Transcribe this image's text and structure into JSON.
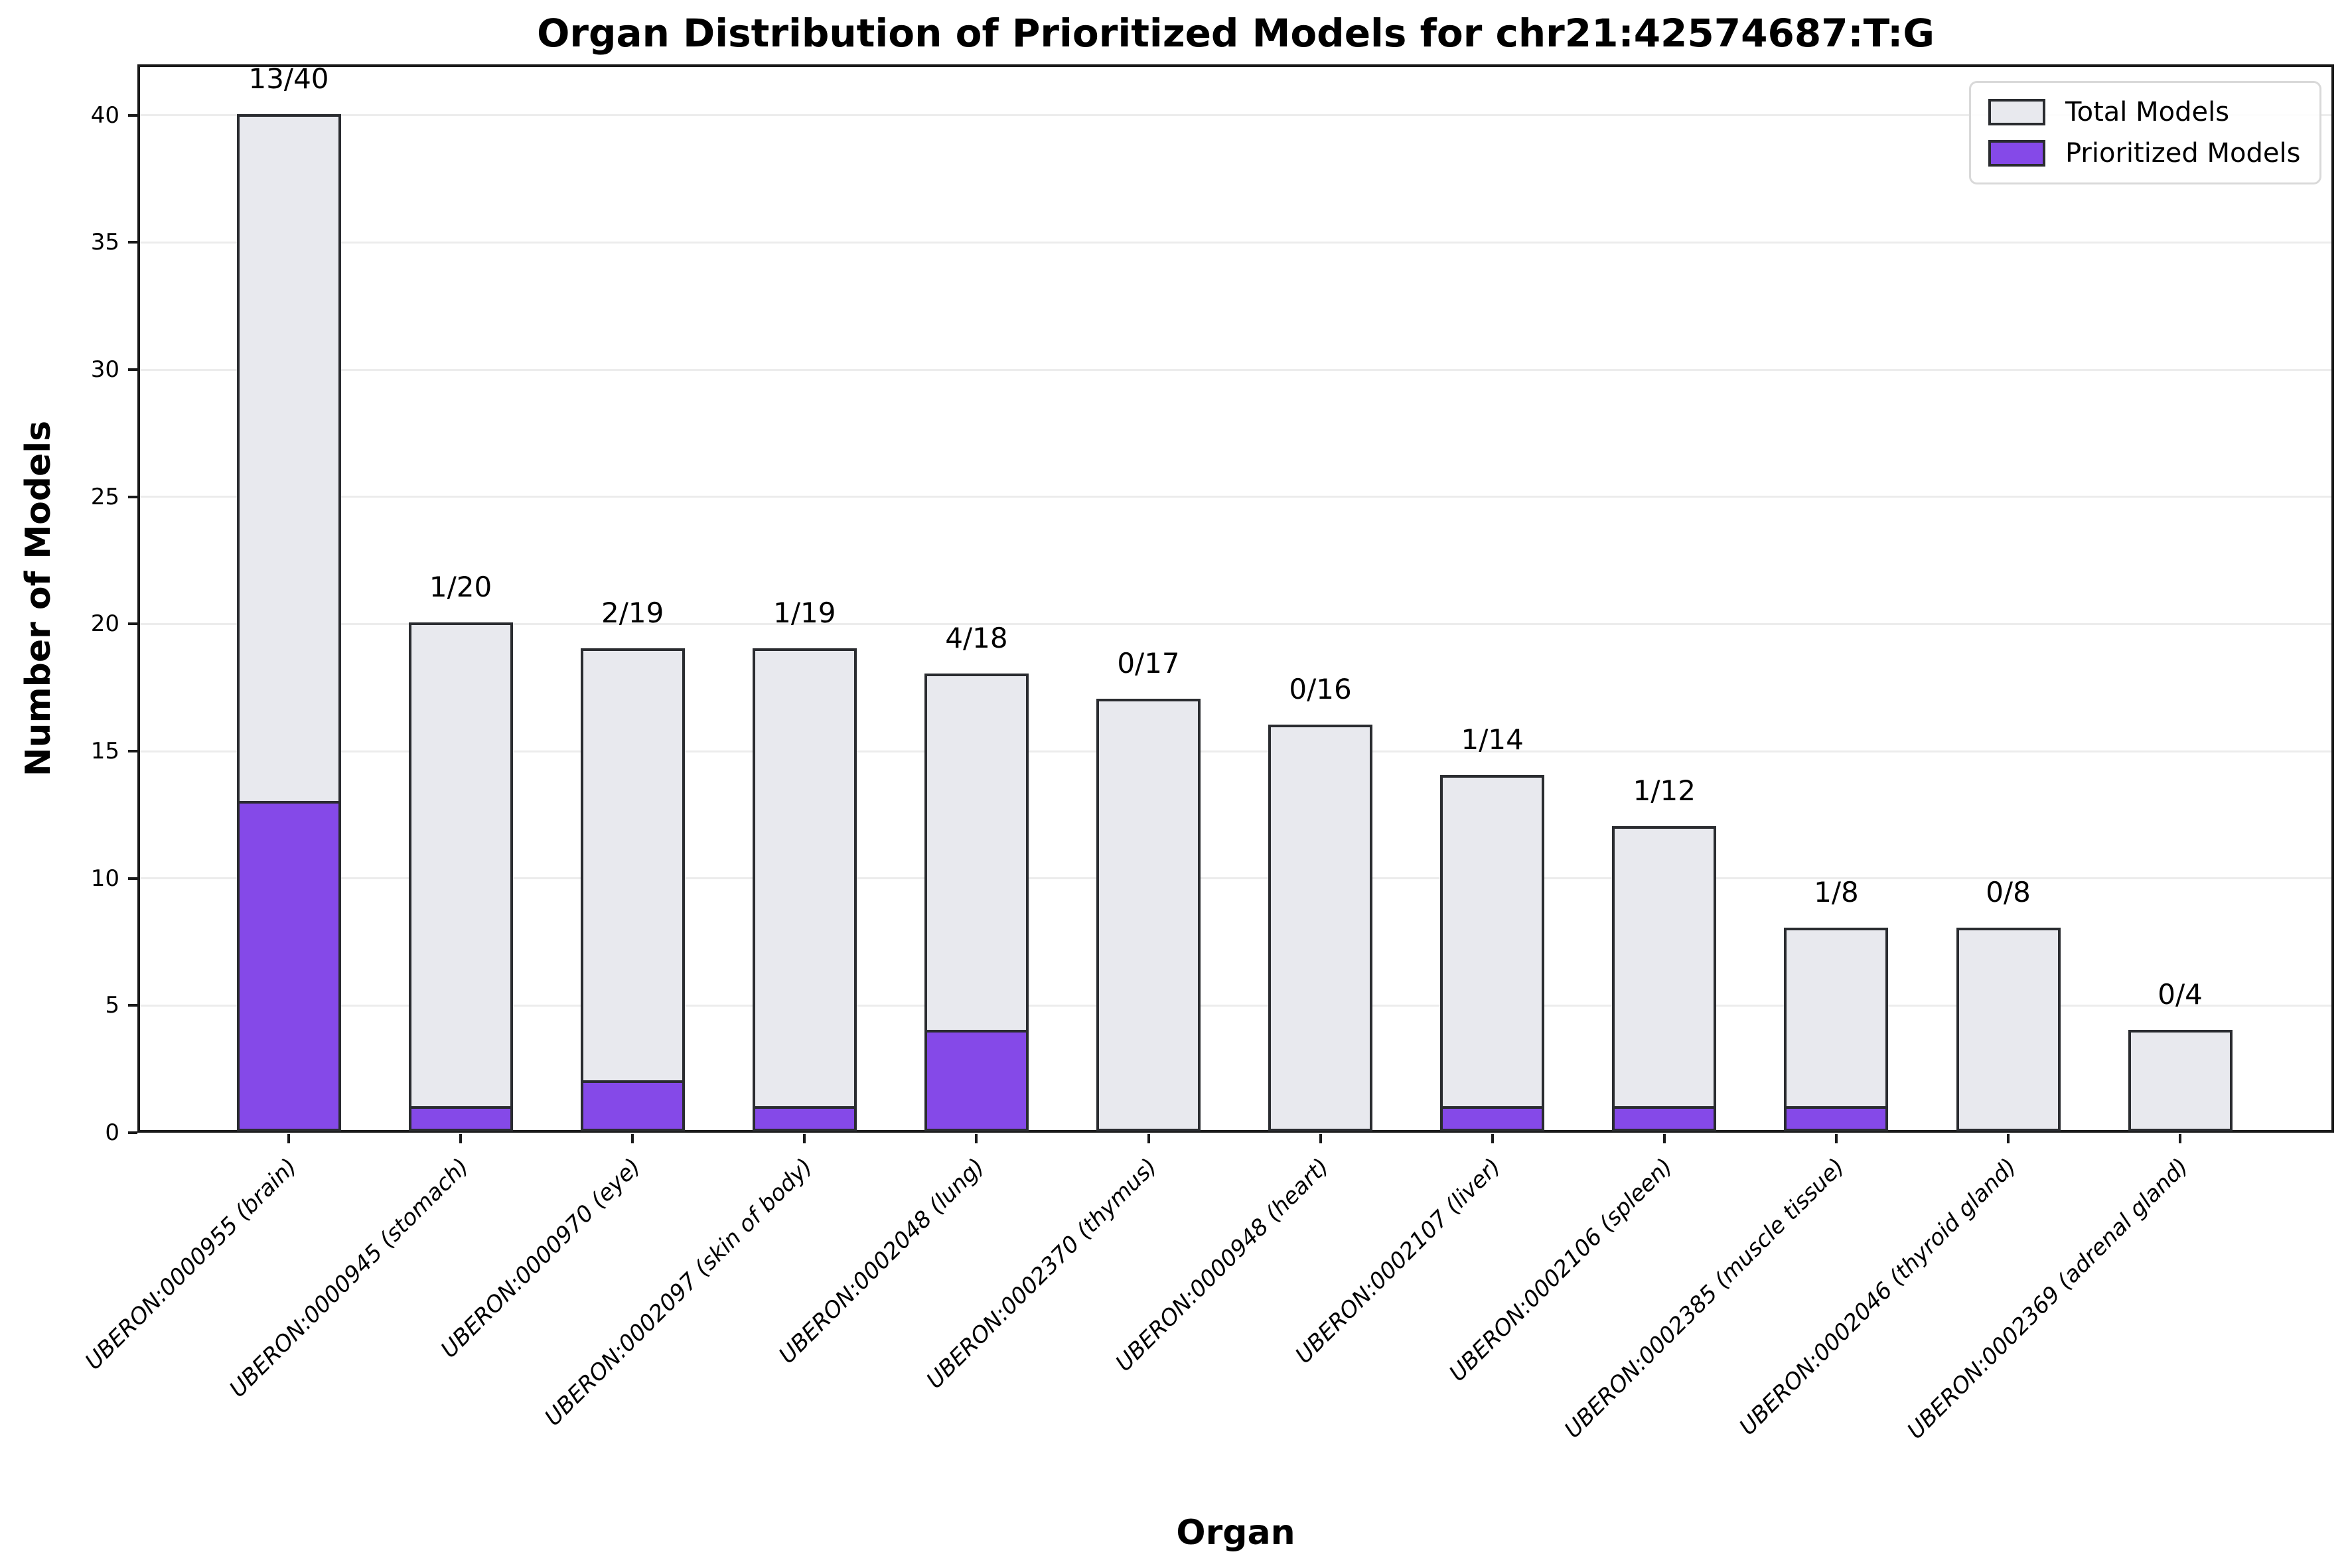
{
  "chart_data": {
    "type": "bar",
    "title": "Organ Distribution of Prioritized Models for chr21:42574687:T:G",
    "xlabel": "Organ",
    "ylabel": "Number of Models",
    "categories": [
      "UBERON:0000955 (brain)",
      "UBERON:0000945 (stomach)",
      "UBERON:0000970 (eye)",
      "UBERON:0002097 (skin of body)",
      "UBERON:0002048 (lung)",
      "UBERON:0002370 (thymus)",
      "UBERON:0000948 (heart)",
      "UBERON:0002107 (liver)",
      "UBERON:0002106 (spleen)",
      "UBERON:0002385 (muscle tissue)",
      "UBERON:0002046 (thyroid gland)",
      "UBERON:0002369 (adrenal gland)"
    ],
    "series": [
      {
        "name": "Total Models",
        "values": [
          40,
          20,
          19,
          19,
          18,
          17,
          16,
          14,
          12,
          8,
          8,
          4
        ],
        "fill": "#E8E9EE"
      },
      {
        "name": "Prioritized Models",
        "values": [
          13,
          1,
          2,
          1,
          4,
          0,
          0,
          1,
          1,
          1,
          0,
          0
        ],
        "fill": "#8549E8"
      }
    ],
    "bar_labels": [
      "13/40",
      "1/20",
      "2/19",
      "1/19",
      "4/18",
      "0/17",
      "0/16",
      "1/14",
      "1/12",
      "1/8",
      "0/8",
      "0/4"
    ],
    "yticks": [
      0,
      5,
      10,
      15,
      20,
      25,
      30,
      35,
      40
    ],
    "ylim": [
      0,
      42
    ],
    "grid": "horizontal",
    "legend_position": "upper right",
    "bar_edge_color": "#2A2C30",
    "axis_color": "#1A1A1A",
    "gridline_color": "#ECECEC",
    "legend_border_color": "#D9D9D9"
  }
}
